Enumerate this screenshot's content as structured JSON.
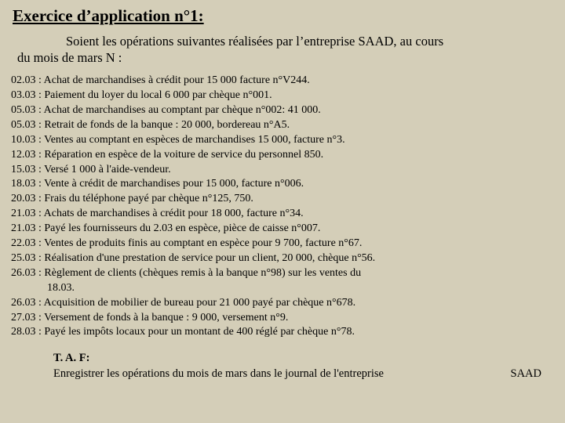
{
  "title": "Exercice d’application n°1:",
  "intro_line1": "Soient les opérations suivantes réalisées par l’entreprise SAAD, au cours",
  "intro_line2": "du mois de mars N :",
  "ops": [
    {
      "date": "02.03",
      "text": "Achat de marchandises à crédit  pour 15 000 facture n°V244."
    },
    {
      "date": "03.03",
      "text": "Paiement du loyer du local 6 000 par chèque n°001."
    },
    {
      "date": "05.03",
      "text": "Achat de marchandises au comptant par chèque n°002: 41 000."
    },
    {
      "date": "05.03",
      "text": "Retrait de fonds de la banque : 20 000, bordereau n°A5."
    },
    {
      "date": "10.03",
      "text": "Ventes au comptant en espèces de marchandises 15 000, facture n°3."
    },
    {
      "date": "12.03",
      "text": "Réparation en espèce de la voiture de service du personnel 850."
    },
    {
      "date": "15.03",
      "text": "Versé 1 000 à l'aide-vendeur."
    },
    {
      "date": "18.03",
      "text": "Vente à crédit de marchandises pour 15 000, facture n°006."
    },
    {
      "date": "20.03",
      "text": "Frais du téléphone payé par chèque n°125, 750."
    },
    {
      "date": "21.03",
      "text": "Achats de marchandises à crédit  pour 18 000, facture n°34."
    },
    {
      "date": "21.03",
      "text": "Payé les fournisseurs du 2.03  en  espèce, pièce de caisse n°007."
    },
    {
      "date": "22.03",
      "text": "Ventes de produits finis au comptant en espèce pour 9 700, facture n°67."
    },
    {
      "date": "25.03",
      "text": "Réalisation d'une prestation de service pour un client, 20 000, chèque n°56."
    },
    {
      "date": "26.03",
      "text": "Règlement de clients (chèques remis à la banque n°98) sur les ventes du"
    }
  ],
  "cont": "18.03.",
  "ops2": [
    {
      "date": "26.03",
      "text": "Acquisition de mobilier de bureau  pour 21 000  payé par chèque n°678."
    },
    {
      "date": "27.03",
      "text": "Versement de fonds à la banque :  9 000, versement n°9."
    },
    {
      "date": "28.03",
      "text": "Payé les impôts locaux  pour un montant de 400 réglé par chèque n°78."
    }
  ],
  "taf_label": "T. A. F:",
  "taf_text": "Enregistrer les opérations  du mois de mars dans le journal de l'entreprise",
  "taf_right": "SAAD"
}
